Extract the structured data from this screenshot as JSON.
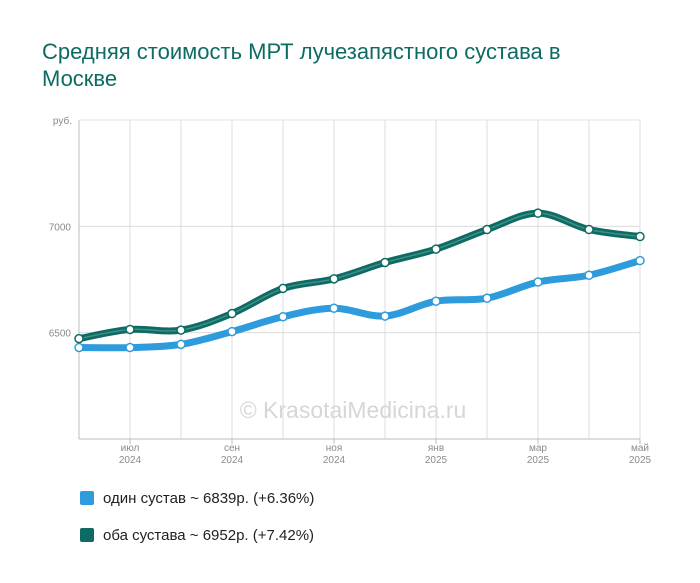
{
  "chart_data": {
    "type": "line",
    "title": "Средняя стоимость МРТ лучезапястного сустава в Москве",
    "ylabel": "руб.",
    "ylim": [
      6000,
      7500
    ],
    "yticks": [
      6500,
      7000
    ],
    "x_points": 12,
    "x_ticks": [
      {
        "index": 1,
        "month": "июл",
        "year": "2024"
      },
      {
        "index": 3,
        "month": "сен",
        "year": "2024"
      },
      {
        "index": 5,
        "month": "ноя",
        "year": "2024"
      },
      {
        "index": 7,
        "month": "янв",
        "year": "2025"
      },
      {
        "index": 9,
        "month": "мар",
        "year": "2025"
      },
      {
        "index": 11,
        "month": "май",
        "year": "2025"
      }
    ],
    "series": [
      {
        "name": "один сустав",
        "color": "#2e9bdc",
        "values": [
          6430,
          6430,
          6445,
          6505,
          6575,
          6615,
          6578,
          6648,
          6662,
          6738,
          6770,
          6839
        ]
      },
      {
        "name": "оба сустава",
        "color": "#0e6b63",
        "values": [
          6472,
          6515,
          6512,
          6590,
          6708,
          6753,
          6830,
          6893,
          6985,
          7062,
          6985,
          6952
        ]
      }
    ],
    "legend": [
      {
        "label": "один сустав ~ 6839р. (+6.36%)",
        "color": "#2e9bdc"
      },
      {
        "label": "оба сустава ~ 6952р. (+7.42%)",
        "color": "#0e6b63"
      }
    ],
    "watermark": "© KrasotaiMedicina.ru",
    "grid": true,
    "legend_position": "bottom-left"
  }
}
